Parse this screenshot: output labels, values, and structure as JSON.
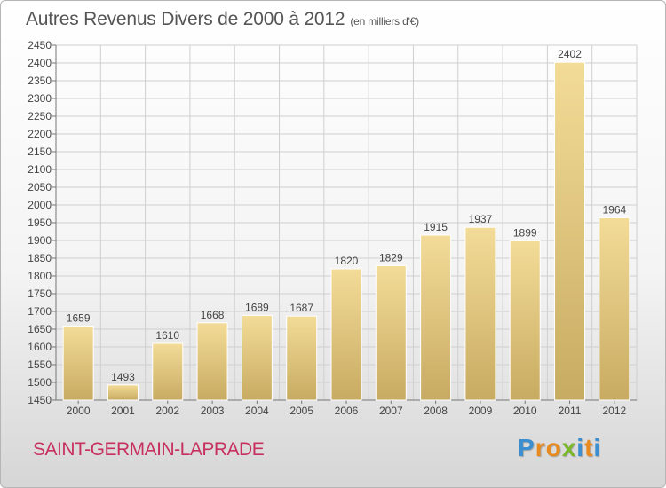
{
  "title": "Autres Revenus Divers de 2000 à 2012",
  "subtitle": "(en milliers d'€)",
  "location": "SAINT-GERMAIN-LAPRADE",
  "logo": [
    "P",
    "r",
    "o",
    "x",
    "i",
    "t",
    "i"
  ],
  "colors": {
    "bar_light": "#f3dc98",
    "bar_dark": "#c8ab62",
    "title": "#555555",
    "location": "#c8305f",
    "logo": [
      "#3b8fd0",
      "#e98a1f",
      "#e98a1f",
      "#7ab829",
      "#3b8fd0",
      "#e98a1f",
      "#3b8fd0"
    ]
  },
  "chart_data": {
    "type": "bar",
    "title": "Autres Revenus Divers de 2000 à 2012",
    "subtitle": "(en milliers d'€)",
    "categories": [
      "2000",
      "2001",
      "2002",
      "2003",
      "2004",
      "2005",
      "2006",
      "2007",
      "2008",
      "2009",
      "2010",
      "2011",
      "2012"
    ],
    "values": [
      1659,
      1493,
      1610,
      1668,
      1689,
      1687,
      1820,
      1829,
      1915,
      1937,
      1899,
      2402,
      1964
    ],
    "ylim": [
      1450,
      2450
    ],
    "ytick_step": 50,
    "grid": true,
    "data_labels": true
  }
}
